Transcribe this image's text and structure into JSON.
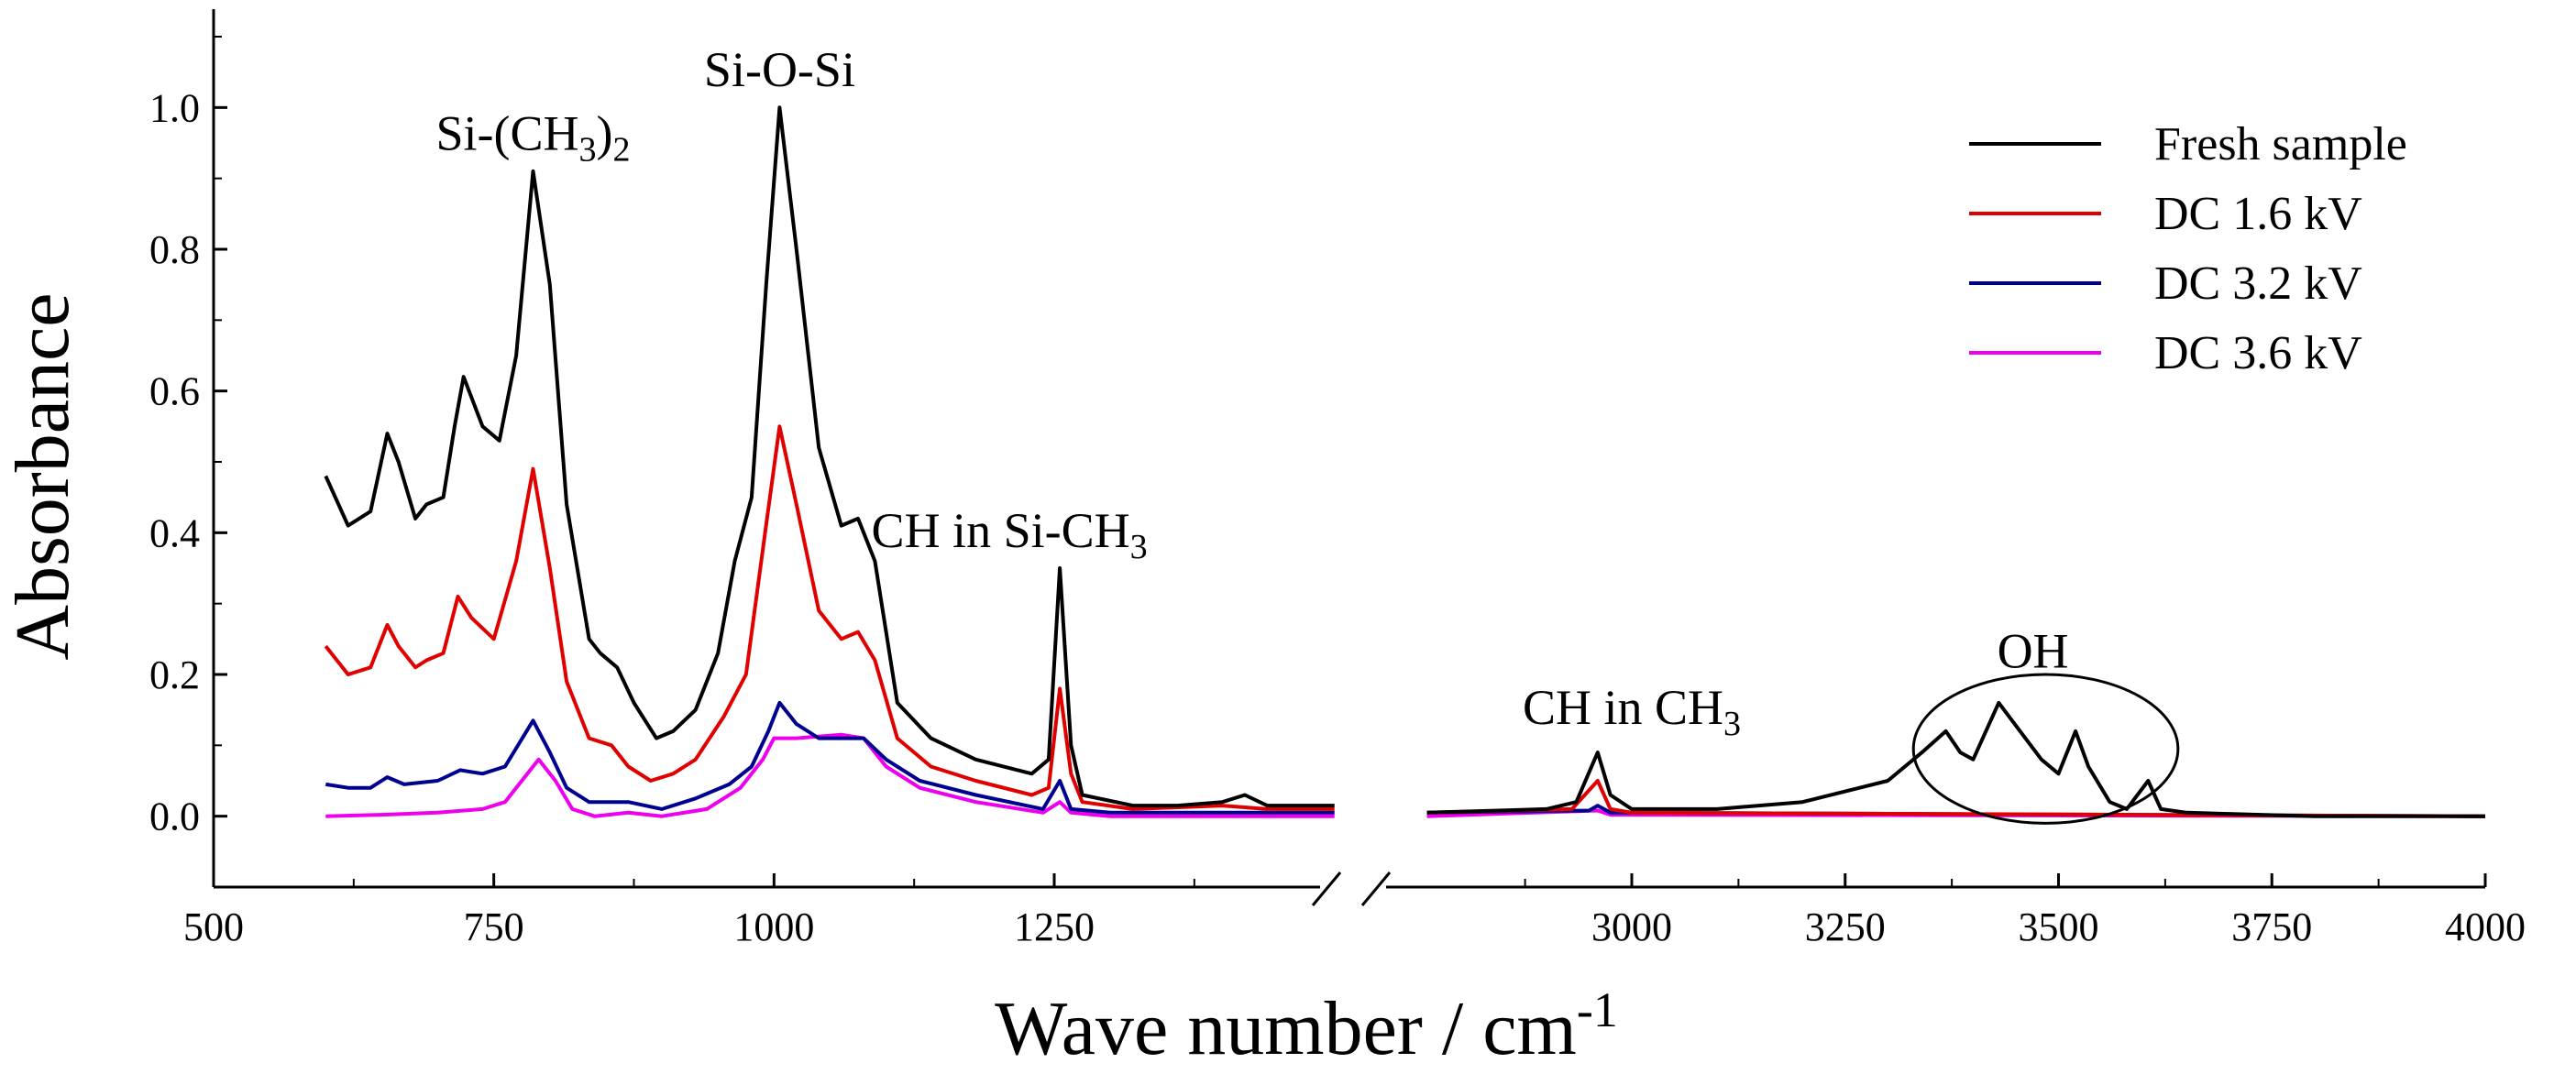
{
  "chart_data": {
    "type": "line",
    "title": "",
    "xlabel": "Wave number / cm",
    "xlabel_superscript": "-1",
    "ylabel": "Absorbance",
    "axis_break": true,
    "segments": [
      {
        "xlim": [
          500,
          1500
        ],
        "xticks": [
          500,
          750,
          1000,
          1250
        ]
      },
      {
        "xlim": [
          2750,
          4000
        ],
        "xticks": [
          3000,
          3250,
          3500,
          3750,
          4000
        ]
      }
    ],
    "ylim": [
      -0.1,
      1.1
    ],
    "yticks": [
      "0.0",
      "0.2",
      "0.4",
      "0.6",
      "0.8",
      "1.0"
    ],
    "grid": false,
    "legend_position": "top-right",
    "series": [
      {
        "name": "Fresh sample",
        "color": "#000000",
        "points": [
          [
            600,
            0.48
          ],
          [
            620,
            0.41
          ],
          [
            640,
            0.43
          ],
          [
            655,
            0.54
          ],
          [
            665,
            0.5
          ],
          [
            680,
            0.42
          ],
          [
            690,
            0.44
          ],
          [
            705,
            0.45
          ],
          [
            715,
            0.55
          ],
          [
            723,
            0.62
          ],
          [
            740,
            0.55
          ],
          [
            755,
            0.53
          ],
          [
            770,
            0.65
          ],
          [
            785,
            0.91
          ],
          [
            800,
            0.75
          ],
          [
            815,
            0.44
          ],
          [
            835,
            0.25
          ],
          [
            845,
            0.23
          ],
          [
            860,
            0.21
          ],
          [
            875,
            0.16
          ],
          [
            895,
            0.11
          ],
          [
            910,
            0.12
          ],
          [
            930,
            0.15
          ],
          [
            950,
            0.23
          ],
          [
            965,
            0.36
          ],
          [
            980,
            0.45
          ],
          [
            993,
            0.75
          ],
          [
            1005,
            1.0
          ],
          [
            1020,
            0.8
          ],
          [
            1040,
            0.52
          ],
          [
            1060,
            0.41
          ],
          [
            1075,
            0.42
          ],
          [
            1090,
            0.36
          ],
          [
            1110,
            0.16
          ],
          [
            1140,
            0.11
          ],
          [
            1180,
            0.08
          ],
          [
            1230,
            0.06
          ],
          [
            1245,
            0.08
          ],
          [
            1255,
            0.35
          ],
          [
            1265,
            0.1
          ],
          [
            1275,
            0.03
          ],
          [
            1320,
            0.015
          ],
          [
            1360,
            0.015
          ],
          [
            1400,
            0.02
          ],
          [
            1420,
            0.03
          ],
          [
            1440,
            0.015
          ],
          [
            1480,
            0.015
          ],
          [
            1500,
            0.015
          ],
          [
            2760,
            0.005
          ],
          [
            2900,
            0.01
          ],
          [
            2935,
            0.02
          ],
          [
            2960,
            0.09
          ],
          [
            2975,
            0.03
          ],
          [
            3000,
            0.01
          ],
          [
            3100,
            0.01
          ],
          [
            3200,
            0.02
          ],
          [
            3300,
            0.05
          ],
          [
            3340,
            0.09
          ],
          [
            3368,
            0.12
          ],
          [
            3385,
            0.09
          ],
          [
            3400,
            0.08
          ],
          [
            3430,
            0.16
          ],
          [
            3455,
            0.12
          ],
          [
            3480,
            0.08
          ],
          [
            3500,
            0.06
          ],
          [
            3520,
            0.12
          ],
          [
            3535,
            0.07
          ],
          [
            3560,
            0.02
          ],
          [
            3580,
            0.01
          ],
          [
            3605,
            0.05
          ],
          [
            3620,
            0.01
          ],
          [
            3650,
            0.005
          ],
          [
            3800,
            0.0
          ],
          [
            4000,
            0.0
          ]
        ]
      },
      {
        "name": "DC 1.6 kV",
        "color": "#e00000",
        "points": [
          [
            600,
            0.24
          ],
          [
            620,
            0.2
          ],
          [
            640,
            0.21
          ],
          [
            655,
            0.27
          ],
          [
            665,
            0.24
          ],
          [
            680,
            0.21
          ],
          [
            690,
            0.22
          ],
          [
            705,
            0.23
          ],
          [
            718,
            0.31
          ],
          [
            730,
            0.28
          ],
          [
            750,
            0.25
          ],
          [
            770,
            0.36
          ],
          [
            785,
            0.49
          ],
          [
            800,
            0.35
          ],
          [
            815,
            0.19
          ],
          [
            835,
            0.11
          ],
          [
            855,
            0.1
          ],
          [
            870,
            0.07
          ],
          [
            890,
            0.05
          ],
          [
            910,
            0.06
          ],
          [
            930,
            0.08
          ],
          [
            955,
            0.14
          ],
          [
            975,
            0.2
          ],
          [
            992,
            0.4
          ],
          [
            1005,
            0.55
          ],
          [
            1020,
            0.44
          ],
          [
            1040,
            0.29
          ],
          [
            1060,
            0.25
          ],
          [
            1075,
            0.26
          ],
          [
            1090,
            0.22
          ],
          [
            1110,
            0.11
          ],
          [
            1140,
            0.07
          ],
          [
            1180,
            0.05
          ],
          [
            1230,
            0.03
          ],
          [
            1245,
            0.04
          ],
          [
            1255,
            0.18
          ],
          [
            1265,
            0.06
          ],
          [
            1275,
            0.02
          ],
          [
            1320,
            0.01
          ],
          [
            1400,
            0.015
          ],
          [
            1440,
            0.01
          ],
          [
            1500,
            0.01
          ],
          [
            2760,
            0.005
          ],
          [
            2930,
            0.01
          ],
          [
            2960,
            0.05
          ],
          [
            2975,
            0.01
          ],
          [
            3000,
            0.005
          ],
          [
            4000,
            0.0
          ]
        ]
      },
      {
        "name": "DC 3.2 kV",
        "color": "#000090",
        "points": [
          [
            600,
            0.045
          ],
          [
            620,
            0.04
          ],
          [
            640,
            0.04
          ],
          [
            655,
            0.055
          ],
          [
            670,
            0.045
          ],
          [
            700,
            0.05
          ],
          [
            720,
            0.065
          ],
          [
            740,
            0.06
          ],
          [
            760,
            0.07
          ],
          [
            785,
            0.135
          ],
          [
            800,
            0.09
          ],
          [
            815,
            0.04
          ],
          [
            835,
            0.02
          ],
          [
            870,
            0.02
          ],
          [
            900,
            0.01
          ],
          [
            930,
            0.025
          ],
          [
            960,
            0.045
          ],
          [
            980,
            0.07
          ],
          [
            995,
            0.12
          ],
          [
            1005,
            0.16
          ],
          [
            1020,
            0.13
          ],
          [
            1040,
            0.11
          ],
          [
            1060,
            0.11
          ],
          [
            1080,
            0.11
          ],
          [
            1100,
            0.08
          ],
          [
            1130,
            0.05
          ],
          [
            1180,
            0.03
          ],
          [
            1240,
            0.01
          ],
          [
            1255,
            0.05
          ],
          [
            1265,
            0.01
          ],
          [
            1300,
            0.005
          ],
          [
            1500,
            0.005
          ],
          [
            2760,
            0.005
          ],
          [
            2950,
            0.008
          ],
          [
            2960,
            0.015
          ],
          [
            2975,
            0.005
          ],
          [
            4000,
            0.0
          ]
        ]
      },
      {
        "name": "DC 3.6 kV",
        "color": "#ee00ee",
        "points": [
          [
            600,
            0.0
          ],
          [
            650,
            0.002
          ],
          [
            700,
            0.005
          ],
          [
            740,
            0.01
          ],
          [
            760,
            0.02
          ],
          [
            775,
            0.05
          ],
          [
            790,
            0.08
          ],
          [
            805,
            0.05
          ],
          [
            820,
            0.01
          ],
          [
            840,
            0.0
          ],
          [
            870,
            0.005
          ],
          [
            900,
            0.0
          ],
          [
            940,
            0.01
          ],
          [
            970,
            0.04
          ],
          [
            990,
            0.08
          ],
          [
            1000,
            0.11
          ],
          [
            1020,
            0.11
          ],
          [
            1060,
            0.115
          ],
          [
            1080,
            0.11
          ],
          [
            1100,
            0.07
          ],
          [
            1130,
            0.04
          ],
          [
            1180,
            0.02
          ],
          [
            1240,
            0.005
          ],
          [
            1255,
            0.02
          ],
          [
            1265,
            0.005
          ],
          [
            1300,
            0.0
          ],
          [
            1500,
            0.0
          ],
          [
            2760,
            0.0
          ],
          [
            2960,
            0.008
          ],
          [
            2975,
            0.002
          ],
          [
            4000,
            0.0
          ]
        ]
      }
    ],
    "annotations": [
      {
        "id": "si-ch3-2",
        "base": "Si-(CH",
        "sub1": "3",
        "mid": ")",
        "sub2": "2",
        "x": 785,
        "y": 0.94
      },
      {
        "id": "si-o-si",
        "text": "Si-O-Si",
        "x": 1005,
        "y": 1.03
      },
      {
        "id": "ch-si-ch3",
        "base": "CH in Si-CH",
        "sub1": "3",
        "x": 1210,
        "y": 0.38
      },
      {
        "id": "ch-ch3",
        "base": "CH in CH",
        "sub1": "3",
        "x": 3000,
        "y": 0.13
      },
      {
        "id": "oh",
        "text": "OH",
        "x": 3470,
        "y": 0.21
      }
    ],
    "oh_ellipse": {
      "center_x": 3485,
      "center_y": 0.095,
      "radius_x": 155,
      "radius_y": 0.105
    }
  }
}
